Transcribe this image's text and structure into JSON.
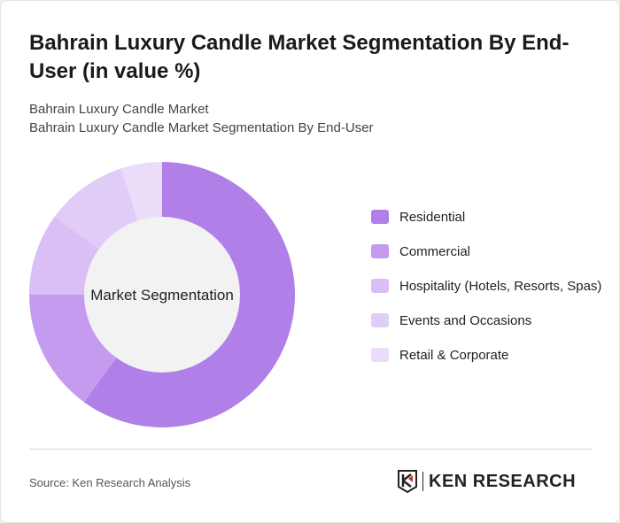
{
  "header": {
    "title": "Bahrain Luxury Candle Market Segmentation By End-User (in value %)",
    "subtitle1": "Bahrain Luxury Candle Market",
    "subtitle2": "Bahrain Luxury Candle Market Segmentation By End-User"
  },
  "chart_data": {
    "type": "pie",
    "donut": true,
    "center_label": "Market Segmentation",
    "categories": [
      "Residential",
      "Commercial",
      "Hospitality (Hotels, Resorts, Spas)",
      "Events and Occasions",
      "Retail & Corporate"
    ],
    "values": [
      60,
      15,
      10,
      10,
      5
    ],
    "colors": [
      "#b07fe8",
      "#c59bef",
      "#d9bff5",
      "#e0cdf7",
      "#ebdcfa"
    ],
    "legend_position": "right"
  },
  "footer": {
    "source": "Source: Ken Research Analysis",
    "logo_text": "KEN RESEARCH"
  }
}
